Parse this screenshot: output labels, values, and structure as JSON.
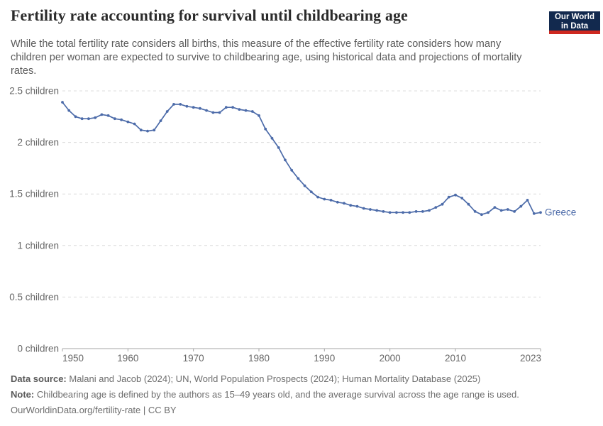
{
  "header": {
    "logo": {
      "line1": "Our World",
      "line2": "in Data"
    }
  },
  "chart_data": {
    "type": "line",
    "title": "Fertility rate accounting for survival until childbearing age",
    "subtitle": "While the total fertility rate considers all births, this measure of the effective fertility rate considers how many children per woman are expected to survive to childbearing age, using historical data and projections of mortality rates.",
    "xlabel": "",
    "ylabel": "",
    "xlim": [
      1950,
      2023
    ],
    "ylim": [
      0,
      2.5
    ],
    "grid": "horizontal-dashed",
    "legend_position": "end-of-line-label",
    "x_ticks": [
      1950,
      1960,
      1970,
      1980,
      1990,
      2000,
      2010,
      2023
    ],
    "x_tick_labels": [
      "1950",
      "1960",
      "1970",
      "1980",
      "1990",
      "2000",
      "2010",
      "2023"
    ],
    "y_ticks": [
      0,
      0.5,
      1,
      1.5,
      2,
      2.5
    ],
    "y_tick_labels": [
      "0 children",
      "0.5 children",
      "1 children",
      "1.5 children",
      "2 children",
      "2.5 children"
    ],
    "end_label": "Greece",
    "x": [
      1950,
      1951,
      1952,
      1953,
      1954,
      1955,
      1956,
      1957,
      1958,
      1959,
      1960,
      1961,
      1962,
      1963,
      1964,
      1965,
      1966,
      1967,
      1968,
      1969,
      1970,
      1971,
      1972,
      1973,
      1974,
      1975,
      1976,
      1977,
      1978,
      1979,
      1980,
      1981,
      1982,
      1983,
      1984,
      1985,
      1986,
      1987,
      1988,
      1989,
      1990,
      1991,
      1992,
      1993,
      1994,
      1995,
      1996,
      1997,
      1998,
      1999,
      2000,
      2001,
      2002,
      2003,
      2004,
      2005,
      2006,
      2007,
      2008,
      2009,
      2010,
      2011,
      2012,
      2013,
      2014,
      2015,
      2016,
      2017,
      2018,
      2019,
      2020,
      2021,
      2022,
      2023
    ],
    "series": [
      {
        "name": "Greece",
        "color": "#4c6ba9",
        "values": [
          2.39,
          2.31,
          2.25,
          2.23,
          2.23,
          2.24,
          2.27,
          2.26,
          2.23,
          2.22,
          2.2,
          2.18,
          2.12,
          2.11,
          2.12,
          2.21,
          2.3,
          2.37,
          2.37,
          2.35,
          2.34,
          2.33,
          2.31,
          2.29,
          2.29,
          2.34,
          2.34,
          2.32,
          2.31,
          2.3,
          2.26,
          2.13,
          2.04,
          1.95,
          1.83,
          1.73,
          1.65,
          1.58,
          1.52,
          1.47,
          1.45,
          1.44,
          1.42,
          1.41,
          1.39,
          1.38,
          1.36,
          1.35,
          1.34,
          1.33,
          1.32,
          1.32,
          1.32,
          1.32,
          1.33,
          1.33,
          1.34,
          1.37,
          1.4,
          1.47,
          1.49,
          1.46,
          1.4,
          1.33,
          1.3,
          1.32,
          1.37,
          1.34,
          1.35,
          1.33,
          1.38,
          1.44,
          1.31,
          1.32
        ]
      }
    ],
    "colors": {
      "line": "#4c6ba9",
      "gridline": "#dcdcdc",
      "axis": "#a6a6a6",
      "tick_label": "#666666"
    }
  },
  "footer": {
    "datasource_label": "Data source:",
    "datasource_text": " Malani and Jacob (2024); UN, World Population Prospects (2024); Human Mortality Database (2025)",
    "note_label": "Note:",
    "note_text": " Childbearing age is defined by the authors as 15–49 years old, and the average survival across the age range is used.",
    "url_line": "OurWorldinData.org/fertility-rate | CC BY"
  }
}
